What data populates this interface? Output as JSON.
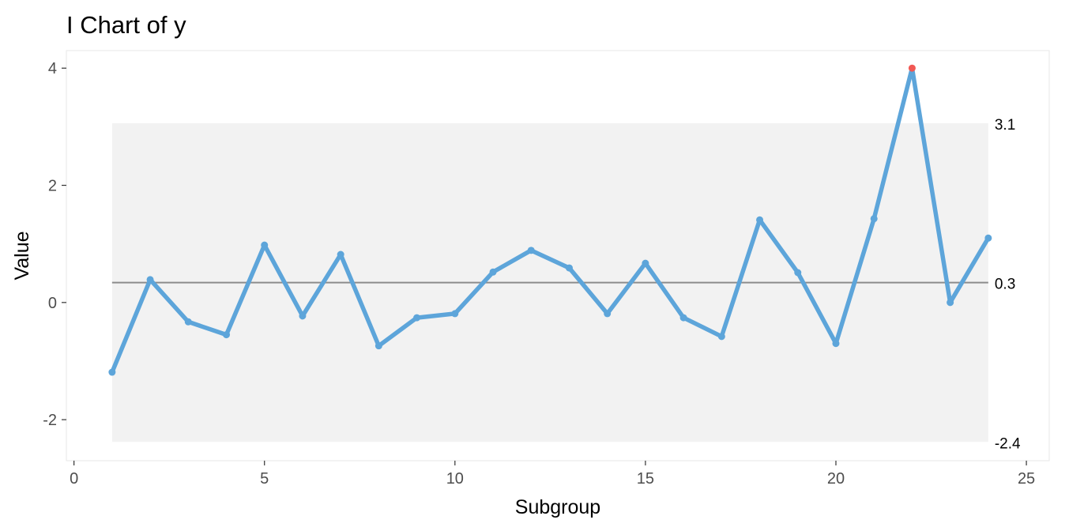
{
  "chart_data": {
    "type": "line",
    "title": "I Chart of y",
    "xlabel": "Subgroup",
    "ylabel": "Value",
    "xlim": [
      -0.2,
      25.6
    ],
    "ylim": [
      -2.7,
      4.3
    ],
    "x_ticks": [
      0,
      5,
      10,
      15,
      20,
      25
    ],
    "y_ticks": [
      -2,
      0,
      2,
      4
    ],
    "grid": false,
    "series": [
      {
        "x": [
          1,
          2,
          3,
          4,
          5,
          6,
          7,
          8,
          9,
          10,
          11,
          12,
          13,
          14,
          15,
          16,
          17,
          18,
          19,
          20,
          21,
          22,
          23,
          24
        ],
        "values": [
          -1.19,
          0.39,
          -0.33,
          -0.55,
          0.98,
          -0.23,
          0.82,
          -0.74,
          -0.26,
          -0.19,
          0.52,
          0.89,
          0.59,
          -0.19,
          0.67,
          -0.26,
          -0.58,
          1.41,
          0.51,
          -0.7,
          1.43,
          4.0,
          0.0,
          1.1
        ]
      }
    ],
    "out_of_control_points": [
      22
    ],
    "center_line": {
      "value": 0.34,
      "label": "0.3"
    },
    "upper_limit": {
      "value": 3.06,
      "label": "3.1"
    },
    "lower_limit": {
      "value": -2.38,
      "label": "-2.4"
    },
    "colors": {
      "line": "#5da5da",
      "point": "#5da5da",
      "out_of_control": "#f15854",
      "center_line": "#8c8c8c",
      "limits_band": "#f2f2f2",
      "panel_border": "#ebebeb"
    }
  }
}
